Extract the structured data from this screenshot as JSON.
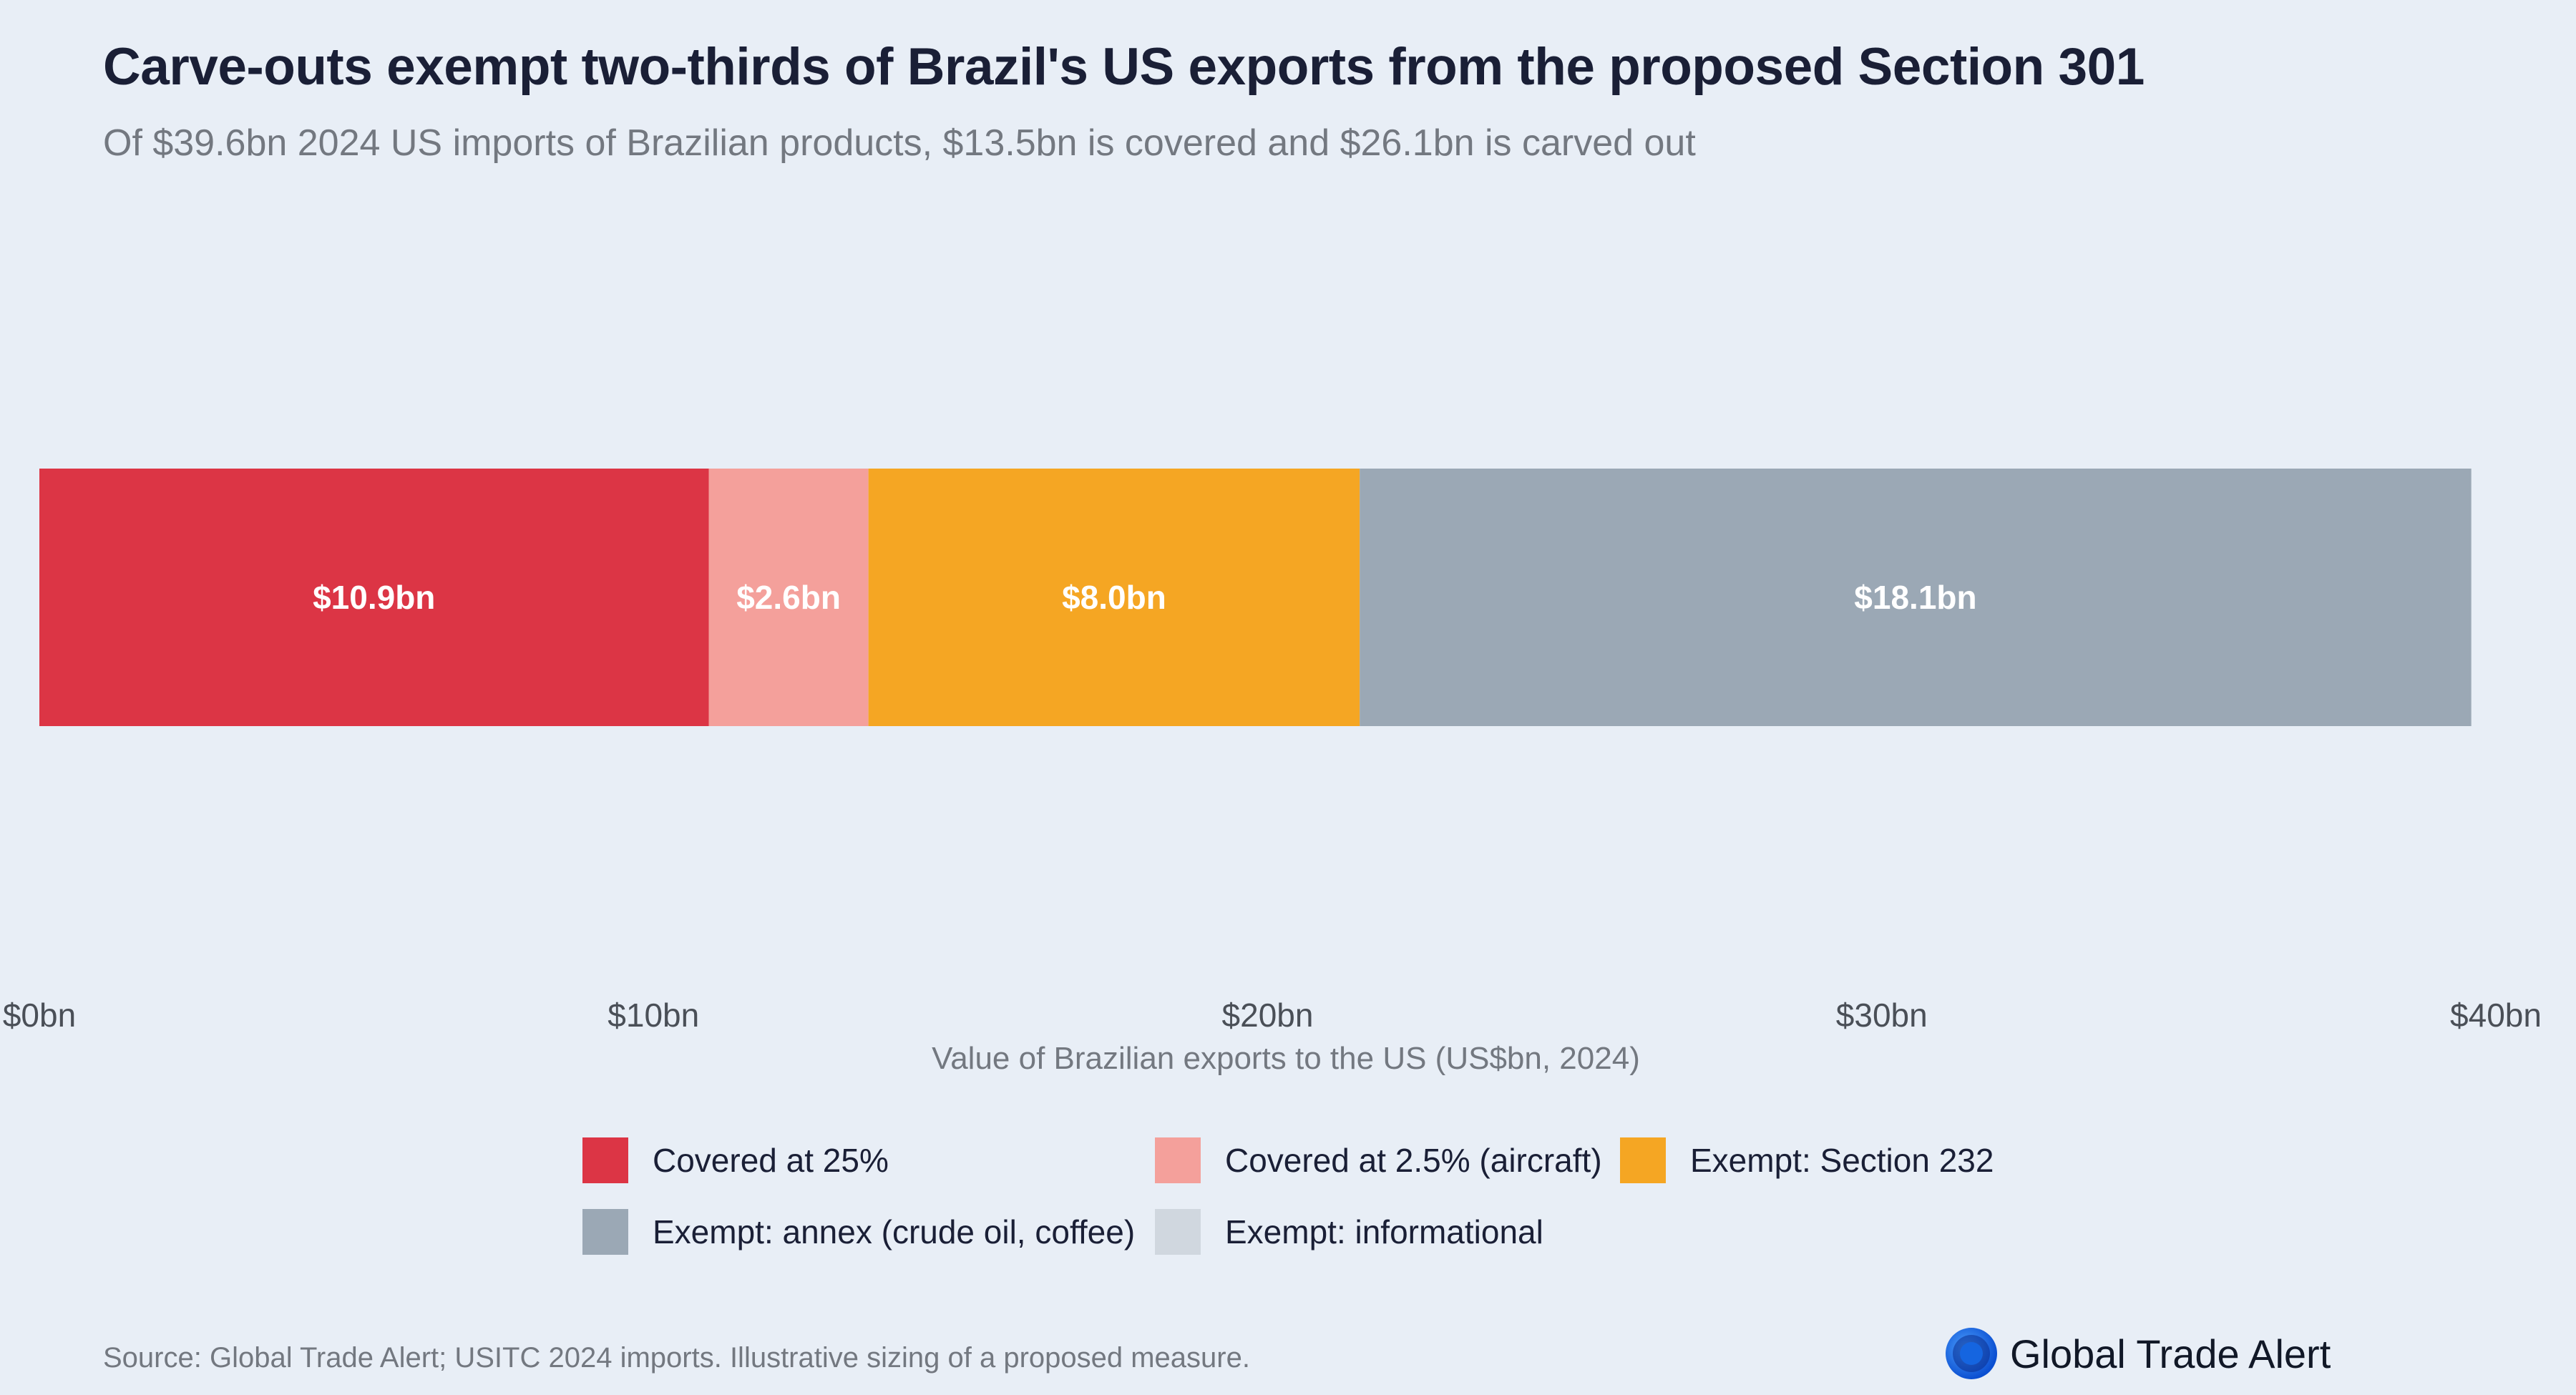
{
  "header": {
    "title": "Carve-outs exempt two-thirds of Brazil's US exports from the proposed Section 301",
    "subtitle": "Of $39.6bn 2024 US imports of Brazilian products, $13.5bn is covered and $26.1bn is carved out"
  },
  "chart_data": {
    "type": "bar",
    "orientation": "horizontal-stacked",
    "categories": [
      "Brazilian exports to the US"
    ],
    "series": [
      {
        "name": "Covered at 25%",
        "values": [
          10.9
        ],
        "label": "$10.9bn",
        "color": "#dc3545"
      },
      {
        "name": "Covered at 2.5% (aircraft)",
        "values": [
          2.6
        ],
        "label": "$2.6bn",
        "color": "#f4a09b"
      },
      {
        "name": "Exempt: Section 232",
        "values": [
          8.0
        ],
        "label": "$8.0bn",
        "color": "#f5a623"
      },
      {
        "name": "Exempt: annex (crude oil, coffee)",
        "values": [
          18.1
        ],
        "label": "$18.1bn",
        "color": "#9ba8b5"
      },
      {
        "name": "Exempt: informational",
        "values": [
          0
        ],
        "label": "",
        "color": "#d0d7df"
      }
    ],
    "xlim": [
      0,
      40
    ],
    "xticks": [
      0,
      10,
      20,
      30,
      40
    ],
    "xtick_labels": [
      "$0bn",
      "$10bn",
      "$20bn",
      "$30bn",
      "$40bn"
    ],
    "xlabel": "Value of Brazilian exports to the US (US$bn, 2024)",
    "ylabel": "",
    "grid": false,
    "legend_position": "bottom"
  },
  "footer": {
    "source": "Source: Global Trade Alert; USITC 2024 imports. Illustrative sizing of a proposed measure.",
    "brand": "Global Trade Alert",
    "brand_icon": "globe-logo-icon",
    "brand_color": "#1565e0"
  }
}
